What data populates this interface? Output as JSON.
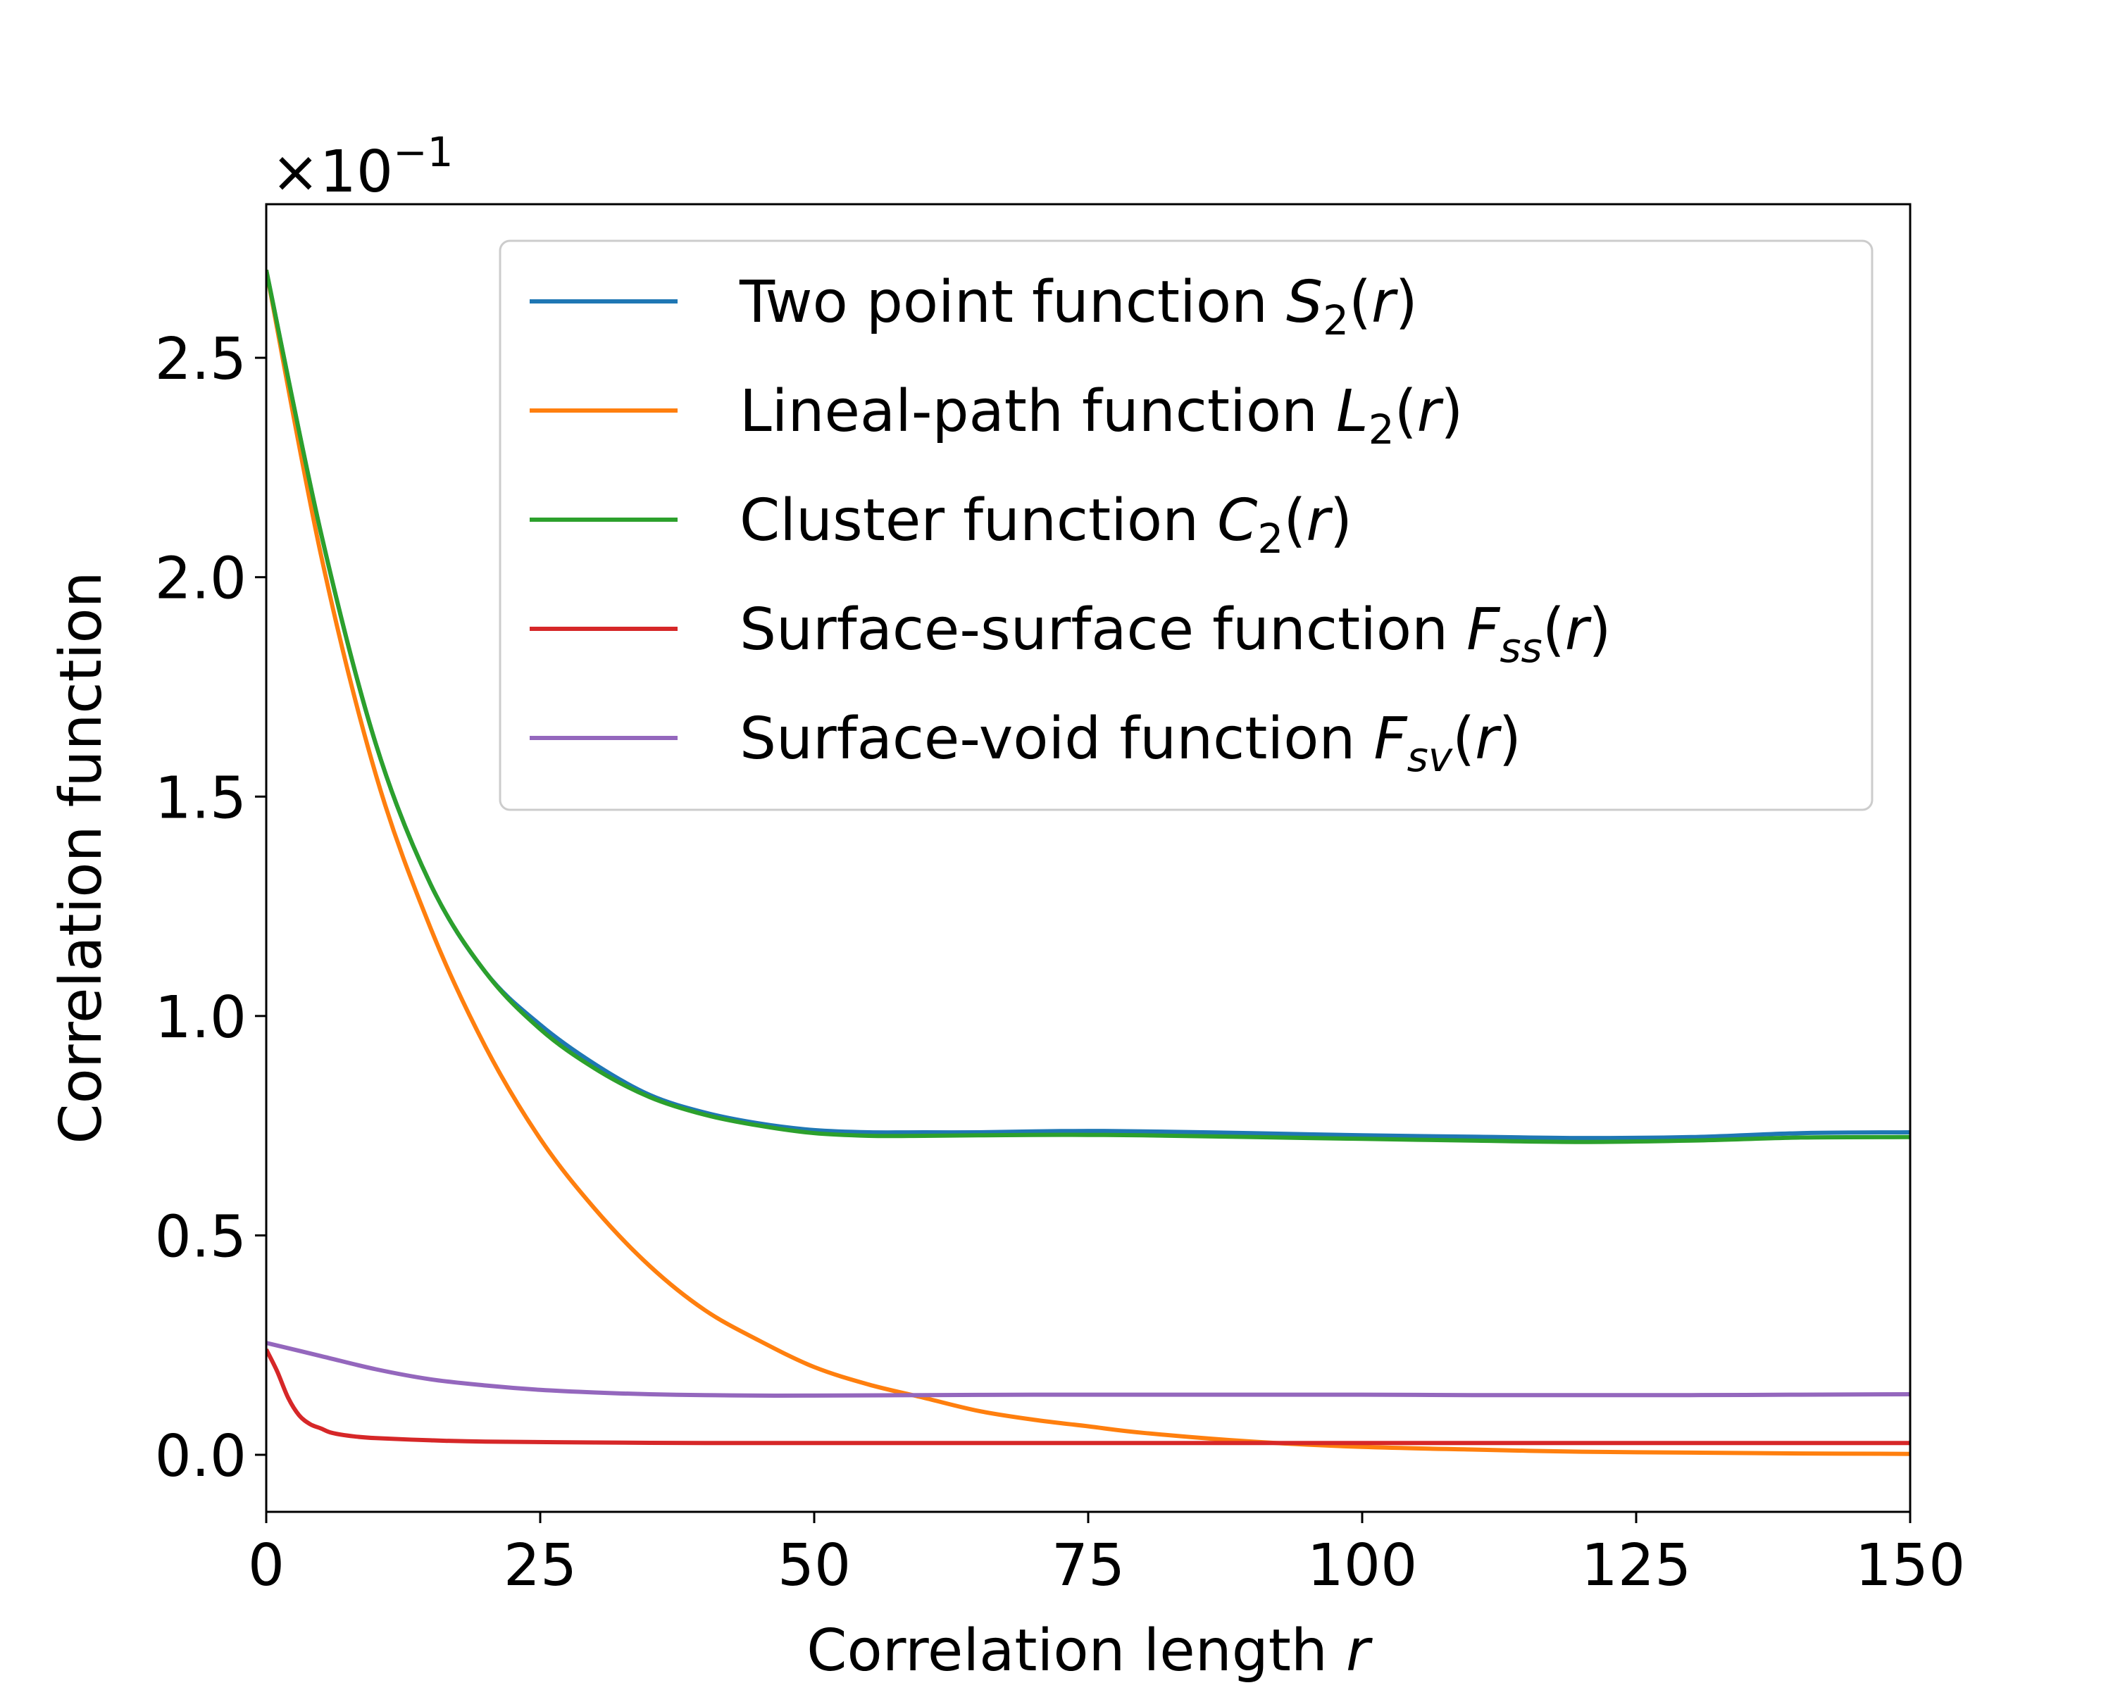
{
  "chart_data": {
    "type": "line",
    "xlabel_text": "Correlation length ",
    "xlabel_var": "r",
    "ylabel": "Correlation function",
    "offset_text": "×10",
    "offset_exp": "−1",
    "xlim": [
      0,
      150
    ],
    "ylim": [
      -0.13,
      2.85
    ],
    "xticks": [
      0,
      25,
      50,
      75,
      100,
      125,
      150
    ],
    "xtick_labels": [
      "0",
      "25",
      "50",
      "75",
      "100",
      "125",
      "150"
    ],
    "yticks": [
      0.0,
      0.5,
      1.0,
      1.5,
      2.0,
      2.5
    ],
    "ytick_labels": [
      "0.0",
      "0.5",
      "1.0",
      "1.5",
      "2.0",
      "2.5"
    ],
    "grid": false,
    "legend_position": "upper-right",
    "series": [
      {
        "name": "Two point function S2(r)",
        "legend_text": "Two point function ",
        "legend_sym": "S",
        "legend_sub": "2",
        "color": "#1f77b4",
        "x": [
          0,
          5,
          10,
          15,
          20,
          25,
          30,
          35,
          40,
          45,
          50,
          55,
          60,
          65,
          70,
          75,
          80,
          90,
          100,
          110,
          120,
          130,
          140,
          150
        ],
        "y": [
          2.7,
          2.1,
          1.62,
          1.3,
          1.1,
          0.98,
          0.89,
          0.82,
          0.78,
          0.755,
          0.74,
          0.735,
          0.735,
          0.735,
          0.737,
          0.738,
          0.737,
          0.733,
          0.728,
          0.725,
          0.722,
          0.724,
          0.733,
          0.735
        ]
      },
      {
        "name": "Lineal-path function L2(r)",
        "legend_text": "Lineal-path function ",
        "legend_sym": "L",
        "legend_sub": "2",
        "color": "#ff7f0e",
        "x": [
          0,
          5,
          10,
          15,
          20,
          25,
          30,
          35,
          40,
          45,
          50,
          55,
          60,
          65,
          70,
          75,
          80,
          90,
          100,
          110,
          120,
          130,
          140,
          150
        ],
        "y": [
          2.7,
          2.05,
          1.55,
          1.2,
          0.93,
          0.72,
          0.56,
          0.43,
          0.33,
          0.26,
          0.2,
          0.16,
          0.13,
          0.1,
          0.08,
          0.065,
          0.05,
          0.03,
          0.018,
          0.012,
          0.007,
          0.005,
          0.003,
          0.002
        ]
      },
      {
        "name": "Cluster function C2(r)",
        "legend_text": "Cluster function ",
        "legend_sym": "C",
        "legend_sub": "2",
        "color": "#2ca02c",
        "x": [
          0,
          5,
          10,
          15,
          20,
          25,
          30,
          35,
          40,
          45,
          50,
          55,
          60,
          65,
          70,
          75,
          80,
          90,
          100,
          110,
          120,
          130,
          140,
          150
        ],
        "y": [
          2.7,
          2.1,
          1.62,
          1.3,
          1.1,
          0.97,
          0.88,
          0.815,
          0.775,
          0.75,
          0.733,
          0.727,
          0.727,
          0.728,
          0.729,
          0.729,
          0.728,
          0.724,
          0.72,
          0.716,
          0.713,
          0.716,
          0.723,
          0.724
        ]
      },
      {
        "name": "Surface-surface function Fss(r)",
        "legend_text": "Surface-surface function ",
        "legend_sym": "F",
        "legend_sub": "ss",
        "color": "#d62728",
        "x": [
          0,
          1,
          2,
          3,
          4,
          5,
          6,
          8,
          10,
          15,
          20,
          30,
          40,
          50,
          75,
          100,
          125,
          150
        ],
        "y": [
          0.24,
          0.19,
          0.13,
          0.09,
          0.07,
          0.06,
          0.05,
          0.042,
          0.038,
          0.033,
          0.03,
          0.028,
          0.027,
          0.027,
          0.027,
          0.027,
          0.027,
          0.027
        ]
      },
      {
        "name": "Surface-void function Fsv(r)",
        "legend_text": "Surface-void function ",
        "legend_sym": "F",
        "legend_sub": "sv",
        "color": "#9467bd",
        "x": [
          0,
          5,
          10,
          15,
          20,
          25,
          30,
          35,
          40,
          45,
          50,
          60,
          70,
          80,
          90,
          100,
          110,
          120,
          130,
          140,
          150
        ],
        "y": [
          0.255,
          0.225,
          0.195,
          0.172,
          0.158,
          0.148,
          0.142,
          0.138,
          0.136,
          0.135,
          0.135,
          0.136,
          0.137,
          0.137,
          0.137,
          0.137,
          0.136,
          0.136,
          0.136,
          0.137,
          0.138
        ]
      }
    ]
  }
}
